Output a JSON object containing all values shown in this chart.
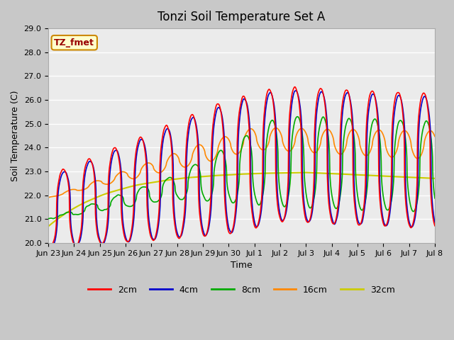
{
  "title": "Tonzi Soil Temperature Set A",
  "xlabel": "Time",
  "ylabel": "Soil Temperature (C)",
  "ylim": [
    20.0,
    29.0
  ],
  "yticks": [
    20.0,
    21.0,
    22.0,
    23.0,
    24.0,
    25.0,
    26.0,
    27.0,
    28.0,
    29.0
  ],
  "fig_bg_color": "#d0d0d0",
  "plot_bg_color": "#e8e8e8",
  "grid_color": "white",
  "annotation_text": "TZ_fmet",
  "annotation_bg": "#ffffcc",
  "annotation_border": "#cc8800",
  "legend_labels": [
    "2cm",
    "4cm",
    "8cm",
    "16cm",
    "32cm"
  ],
  "line_colors": {
    "2cm": "#ff0000",
    "4cm": "#0000cc",
    "8cm": "#00aa00",
    "16cm": "#ff8800",
    "32cm": "#cccc00"
  },
  "x_tick_labels": [
    "Jun 23",
    "Jun 24",
    "Jun 25",
    "Jun 26",
    "Jun 27",
    "Jun 28",
    "Jun 29",
    "Jun 30",
    "Jul 1",
    "Jul 2",
    "Jul 3",
    "Jul 4",
    "Jul 5",
    "Jul 6",
    "Jul 7",
    "Jul 8"
  ],
  "title_fontsize": 12,
  "label_fontsize": 9,
  "tick_fontsize": 8,
  "linewidth": 1.2
}
